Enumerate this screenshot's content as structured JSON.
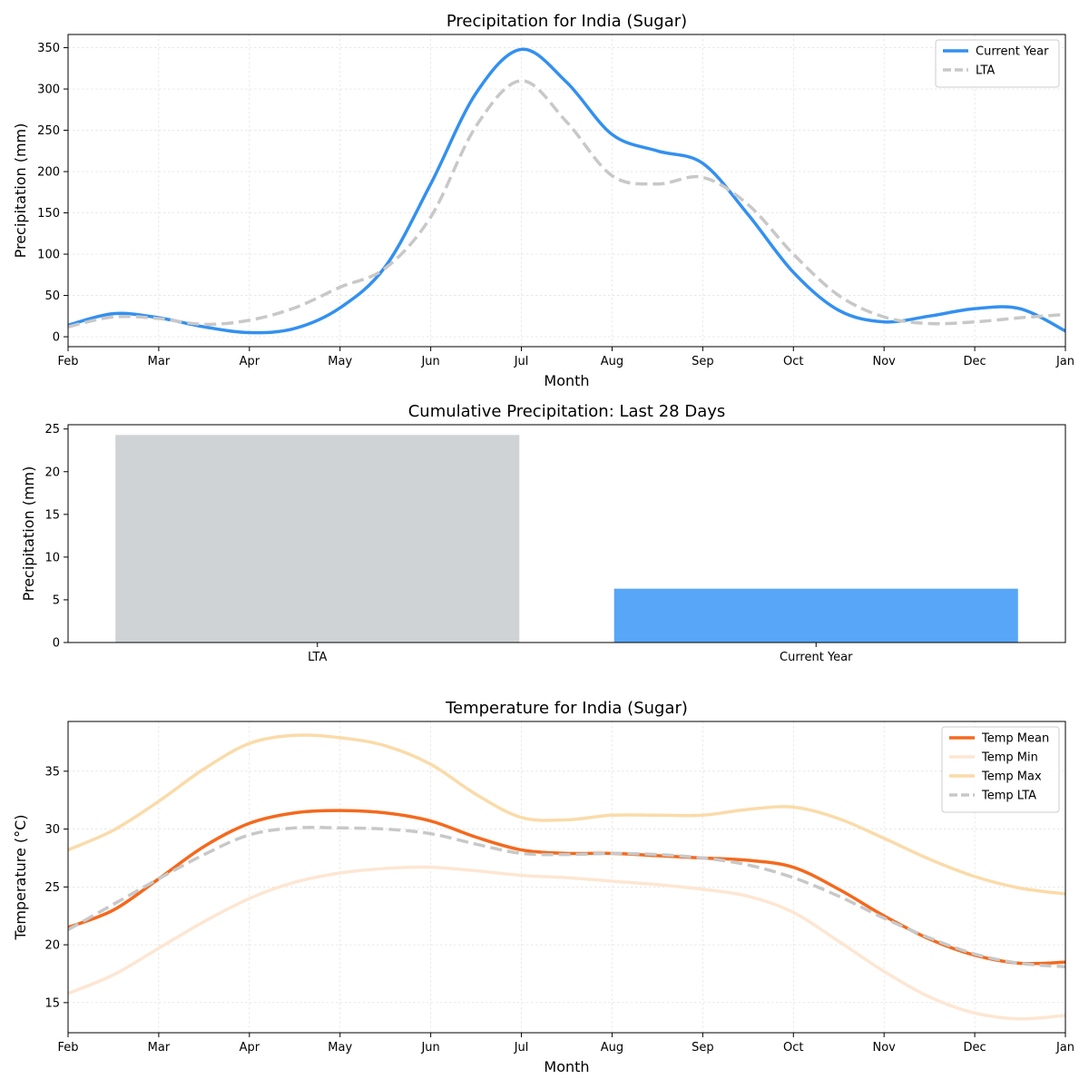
{
  "chart_data": [
    {
      "type": "line",
      "title": "Precipitation for India (Sugar)",
      "xlabel": "Month",
      "ylabel": "Precipitation (mm)",
      "categories": [
        "Feb",
        "Mar",
        "Apr",
        "May",
        "Jun",
        "Jul",
        "Aug",
        "Sep",
        "Oct",
        "Nov",
        "Dec",
        "Jan"
      ],
      "xlim": [
        0,
        11
      ],
      "ylim": [
        -12,
        366
      ],
      "yticks": [
        0,
        50,
        100,
        150,
        200,
        250,
        300,
        350
      ],
      "grid": true,
      "legend_position": "top-right",
      "series": [
        {
          "name": "Current Year",
          "color": "#3390f0",
          "style": "solid",
          "x": [
            0,
            0.5,
            1,
            1.5,
            2,
            2.5,
            3,
            3.5,
            4,
            4.5,
            5,
            5.5,
            6,
            6.5,
            7,
            7.5,
            8,
            8.5,
            9,
            9.5,
            10,
            10.5,
            11
          ],
          "y": [
            14,
            28,
            23,
            12,
            5,
            10,
            35,
            85,
            185,
            295,
            348,
            308,
            245,
            225,
            210,
            148,
            78,
            32,
            18,
            25,
            34,
            34,
            7
          ]
        },
        {
          "name": "LTA",
          "color": "#c8c8c8",
          "style": "dashed",
          "x": [
            0,
            0.5,
            1,
            1.5,
            2,
            2.5,
            3,
            3.5,
            4,
            4.5,
            5,
            5.5,
            6,
            6.5,
            7,
            7.5,
            8,
            8.5,
            9,
            9.5,
            10,
            10.5,
            11
          ],
          "y": [
            12,
            24,
            22,
            15,
            20,
            35,
            60,
            83,
            145,
            255,
            310,
            260,
            195,
            185,
            193,
            160,
            100,
            50,
            24,
            16,
            18,
            23,
            27
          ]
        }
      ]
    },
    {
      "type": "bar",
      "title": "Cumulative Precipitation: Last 28 Days",
      "xlabel": "",
      "ylabel": "Precipitation (mm)",
      "categories": [
        "LTA",
        "Current Year"
      ],
      "values": [
        24.3,
        6.3
      ],
      "colors": [
        "#d0d3d6",
        "#58a6f8"
      ],
      "ylim": [
        0,
        25.5
      ],
      "yticks": [
        0,
        5,
        10,
        15,
        20,
        25
      ],
      "grid": false
    },
    {
      "type": "line",
      "title": "Temperature for India (Sugar)",
      "xlabel": "Month",
      "ylabel": "Temperature (°C)",
      "categories": [
        "Feb",
        "Mar",
        "Apr",
        "May",
        "Jun",
        "Jul",
        "Aug",
        "Sep",
        "Oct",
        "Nov",
        "Dec",
        "Jan"
      ],
      "xlim": [
        0,
        11
      ],
      "ylim": [
        12.4,
        39.3
      ],
      "yticks": [
        15,
        20,
        25,
        30,
        35
      ],
      "grid": true,
      "legend_position": "top-right",
      "series": [
        {
          "name": "Temp Mean",
          "color": "#f4691d",
          "style": "solid",
          "x": [
            0,
            0.5,
            1,
            1.5,
            2,
            2.5,
            3,
            3.5,
            4,
            4.5,
            5,
            5.5,
            6,
            6.5,
            7,
            7.5,
            8,
            8.5,
            9,
            9.5,
            10,
            10.5,
            11
          ],
          "y": [
            21.5,
            23.0,
            25.7,
            28.5,
            30.5,
            31.4,
            31.6,
            31.4,
            30.7,
            29.3,
            28.2,
            27.9,
            27.9,
            27.7,
            27.5,
            27.3,
            26.7,
            24.8,
            22.5,
            20.5,
            19.1,
            18.4,
            18.5
          ]
        },
        {
          "name": "Temp Min",
          "color": "#fde6d2",
          "style": "solid",
          "x": [
            0,
            0.5,
            1,
            1.5,
            2,
            2.5,
            3,
            3.5,
            4,
            4.5,
            5,
            5.5,
            6,
            6.5,
            7,
            7.5,
            8,
            8.5,
            9,
            9.5,
            10,
            10.5,
            11
          ],
          "y": [
            15.8,
            17.4,
            19.7,
            22.0,
            24.0,
            25.4,
            26.2,
            26.6,
            26.7,
            26.4,
            26.0,
            25.8,
            25.5,
            25.2,
            24.8,
            24.2,
            22.8,
            20.3,
            17.7,
            15.5,
            14.1,
            13.6,
            13.9
          ]
        },
        {
          "name": "Temp Max",
          "color": "#fadba9",
          "style": "solid",
          "x": [
            0,
            0.5,
            1,
            1.5,
            2,
            2.5,
            3,
            3.5,
            4,
            4.5,
            5,
            5.5,
            6,
            6.5,
            7,
            7.5,
            8,
            8.5,
            9,
            9.5,
            10,
            10.5,
            11
          ],
          "y": [
            28.2,
            29.9,
            32.4,
            35.2,
            37.4,
            38.1,
            37.9,
            37.2,
            35.6,
            33.0,
            31.0,
            30.8,
            31.2,
            31.2,
            31.2,
            31.7,
            31.9,
            30.9,
            29.2,
            27.4,
            25.9,
            24.9,
            24.4
          ]
        },
        {
          "name": "Temp LTA",
          "color": "#c8c8c8",
          "style": "dashed",
          "x": [
            0,
            0.5,
            1,
            1.5,
            2,
            2.5,
            3,
            3.5,
            4,
            4.5,
            5,
            5.5,
            6,
            6.5,
            7,
            7.5,
            8,
            8.5,
            9,
            9.5,
            10,
            10.5,
            11
          ],
          "y": [
            21.3,
            23.5,
            25.7,
            27.8,
            29.5,
            30.1,
            30.1,
            30.0,
            29.6,
            28.7,
            27.9,
            27.8,
            27.9,
            27.8,
            27.5,
            26.9,
            25.8,
            24.2,
            22.3,
            20.6,
            19.2,
            18.4,
            18.1
          ]
        }
      ]
    }
  ]
}
